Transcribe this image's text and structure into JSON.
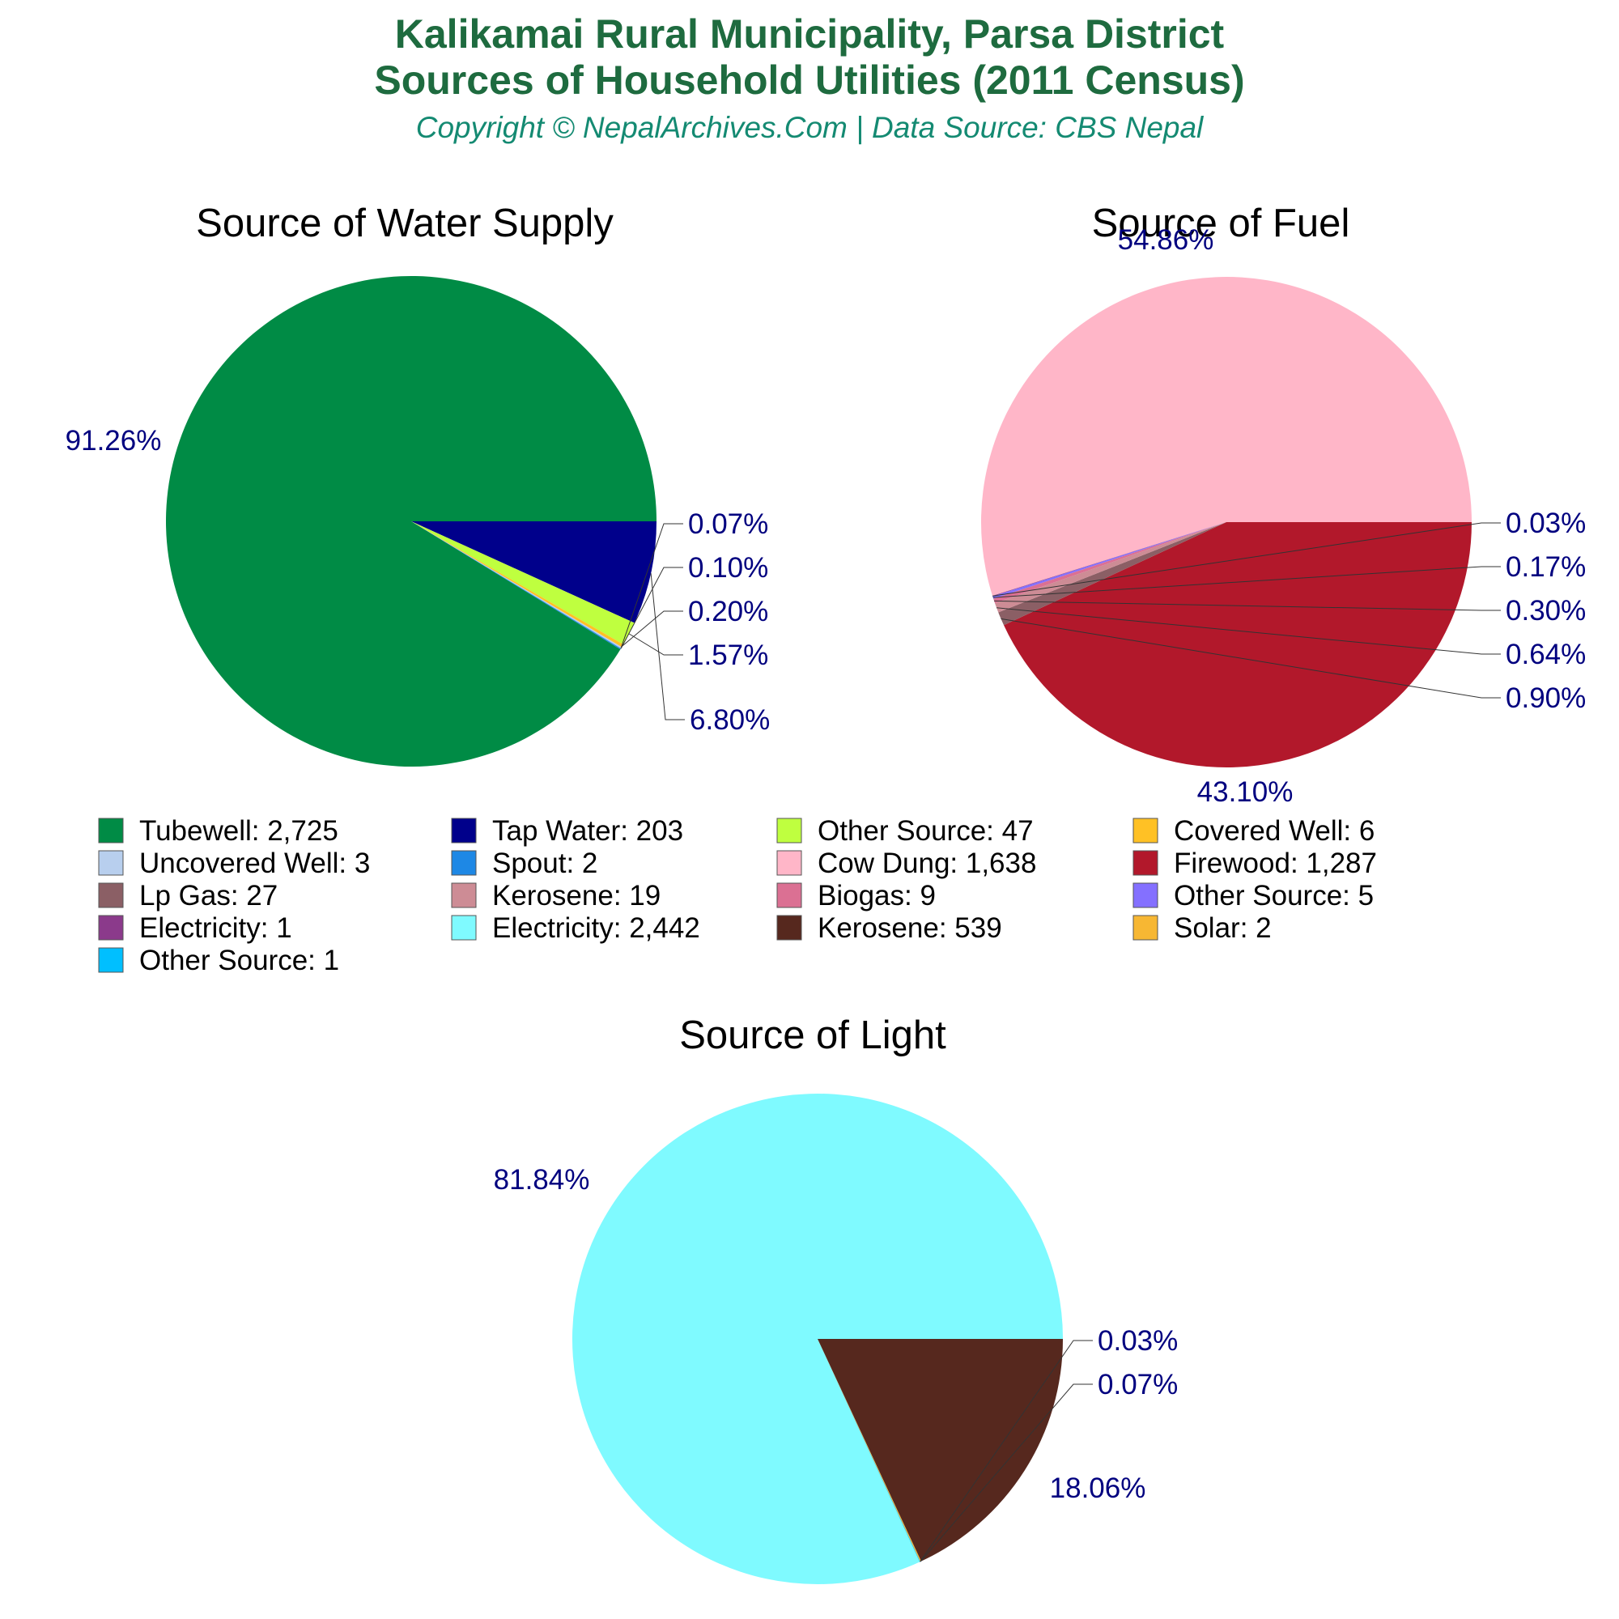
{
  "header": {
    "title_line1": "Kalikamai Rural Municipality, Parsa District",
    "title_line2": "Sources of Household Utilities (2011 Census)",
    "subtitle": "Copyright © NepalArchives.Com | Data Source: CBS Nepal"
  },
  "chart_data": [
    {
      "type": "pie",
      "title": "Source of Water Supply",
      "slices": [
        {
          "name": "Tubewell",
          "value": 2725,
          "percent": "91.26%",
          "color": "#008b45"
        },
        {
          "name": "Tap Water",
          "value": 203,
          "percent": "6.80%",
          "color": "#00008b"
        },
        {
          "name": "Other Source",
          "value": 47,
          "percent": "1.57%",
          "color": "#bfff3f"
        },
        {
          "name": "Covered Well",
          "value": 6,
          "percent": "0.20%",
          "color": "#ffc125"
        },
        {
          "name": "Uncovered Well",
          "value": 3,
          "percent": "0.10%",
          "color": "#b8cfee"
        },
        {
          "name": "Spout",
          "value": 2,
          "percent": "0.07%",
          "color": "#1e88e5"
        }
      ]
    },
    {
      "type": "pie",
      "title": "Source of Fuel",
      "slices": [
        {
          "name": "Cow Dung",
          "value": 1638,
          "percent": "54.86%",
          "color": "#ffb6c8"
        },
        {
          "name": "Firewood",
          "value": 1287,
          "percent": "43.10%",
          "color": "#b2182b"
        },
        {
          "name": "Lp Gas",
          "value": 27,
          "percent": "0.90%",
          "color": "#8b5f65"
        },
        {
          "name": "Kerosene",
          "value": 19,
          "percent": "0.64%",
          "color": "#cd8c95"
        },
        {
          "name": "Biogas",
          "value": 9,
          "percent": "0.30%",
          "color": "#db7093"
        },
        {
          "name": "Other Source",
          "value": 5,
          "percent": "0.17%",
          "color": "#8470ff"
        },
        {
          "name": "Electricity",
          "value": 1,
          "percent": "0.03%",
          "color": "#8b3a8b"
        }
      ]
    },
    {
      "type": "pie",
      "title": "Source of Light",
      "slices": [
        {
          "name": "Electricity",
          "value": 2442,
          "percent": "81.84%",
          "color": "#7ffaff"
        },
        {
          "name": "Kerosene",
          "value": 539,
          "percent": "18.06%",
          "color": "#56281e"
        },
        {
          "name": "Solar",
          "value": 2,
          "percent": "0.07%",
          "color": "#f7b733"
        },
        {
          "name": "Other Source",
          "value": 1,
          "percent": "0.03%",
          "color": "#00bfff"
        }
      ]
    }
  ],
  "legend": {
    "placement": "between-rows",
    "items": [
      {
        "label": "Tubewell: 2,725",
        "color": "#008b45"
      },
      {
        "label": "Tap Water: 203",
        "color": "#00008b"
      },
      {
        "label": "Other Source: 47",
        "color": "#bfff3f"
      },
      {
        "label": "Covered Well: 6",
        "color": "#ffc125"
      },
      {
        "label": "Uncovered Well: 3",
        "color": "#b8cfee"
      },
      {
        "label": "Spout: 2",
        "color": "#1e88e5"
      },
      {
        "label": "Cow Dung: 1,638",
        "color": "#ffb6c8"
      },
      {
        "label": "Firewood: 1,287",
        "color": "#b2182b"
      },
      {
        "label": "Lp Gas: 27",
        "color": "#8b5f65"
      },
      {
        "label": "Kerosene: 19",
        "color": "#cd8c95"
      },
      {
        "label": "Biogas: 9",
        "color": "#db7093"
      },
      {
        "label": "Other Source: 5",
        "color": "#8470ff"
      },
      {
        "label": "Electricity: 1",
        "color": "#8b3a8b"
      },
      {
        "label": "Electricity: 2,442",
        "color": "#7ffaff"
      },
      {
        "label": "Kerosene: 539",
        "color": "#56281e"
      },
      {
        "label": "Solar: 2",
        "color": "#f7b733"
      },
      {
        "label": "Other Source: 1",
        "color": "#00bfff"
      }
    ]
  }
}
